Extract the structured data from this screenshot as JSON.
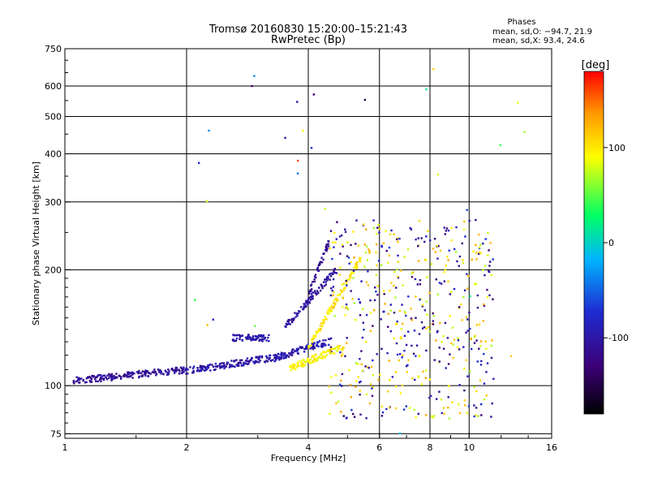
{
  "header": {
    "title": "Tromsø 20160830 15:20:00–15:21:43",
    "subtitle": "RwPretec (Bp)"
  },
  "stats": {
    "heading": "Phases",
    "line_o": "mean, sd,O: −94.7, 21.9",
    "line_x": "mean, sd,X:  93.4, 24.6"
  },
  "chart_data": {
    "type": "scatter",
    "title": "Tromsø 20160830 15:20:00–15:21:43",
    "subtitle": "RwPretec (Bp)",
    "xlabel": "Frequency [MHz]",
    "ylabel": "Stationary phase Virtual Height [km]",
    "x_scale": "log",
    "y_scale": "log",
    "xlim": [
      1,
      16
    ],
    "ylim": [
      73,
      750
    ],
    "x_ticks": [
      1,
      2,
      4,
      6,
      8,
      10,
      16
    ],
    "y_ticks": [
      75,
      100,
      200,
      300,
      400,
      500,
      600,
      750
    ],
    "grid": true,
    "colorbar": {
      "label": "[deg]",
      "range": [
        -180,
        180
      ],
      "ticks": [
        100,
        0,
        -100
      ],
      "colors": [
        "#000000",
        "#3c0078",
        "#1e2cd2",
        "#00b4ff",
        "#00ff64",
        "#ffff00",
        "#ff9600",
        "#ff0000"
      ]
    },
    "bands": [
      {
        "name": "",
        "x_start": 1.05,
        "x_end": 1.98,
        "y_start": 103,
        "y_end": 110,
        "phase": -110
      },
      {
        "name": "",
        "x_start": 1.98,
        "x_end": 3.4,
        "y_start": 109,
        "y_end": 119,
        "phase": -100
      },
      {
        "name": "",
        "x_start": 2.6,
        "x_end": 3.2,
        "y_start": 133,
        "y_end": 133,
        "phase": -95
      },
      {
        "name": "",
        "x_start": 3.3,
        "x_end": 4.6,
        "y_start": 118,
        "y_end": 131,
        "phase": -95
      },
      {
        "name": "",
        "x_start": 3.5,
        "x_end": 4.7,
        "y_start": 142,
        "y_end": 200,
        "phase": -105
      },
      {
        "name": "",
        "x_start": 4.0,
        "x_end": 4.5,
        "y_start": 172,
        "y_end": 236,
        "phase": -115
      },
      {
        "name": "",
        "x_start": 4.0,
        "x_end": 5.4,
        "y_start": 125,
        "y_end": 215,
        "phase": 100
      },
      {
        "name": "",
        "x_start": 3.6,
        "x_end": 4.9,
        "y_start": 111,
        "y_end": 126,
        "phase": 95
      }
    ],
    "scatter_region": {
      "x_min": 4.5,
      "x_max": 11.5,
      "y_min": 82,
      "y_max": 270
    }
  }
}
